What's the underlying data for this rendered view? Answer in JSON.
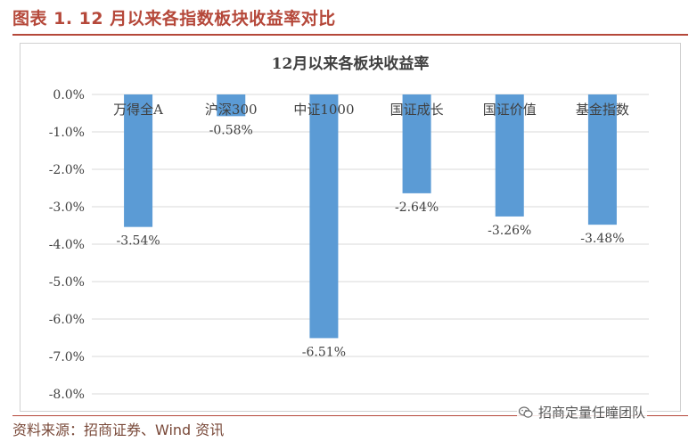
{
  "figure_title": "图表 1. 12 月以来各指数板块收益率对比",
  "source": "资料来源：招商证券、Wind 资讯",
  "watermark": "招商定量任瞳团队",
  "watermark_icon": "wechat-icon",
  "colors": {
    "bar": "#5b9bd5",
    "accent": "#b5483a",
    "grid": "#d9d9d9"
  },
  "chart_data": {
    "type": "bar",
    "title": "12月以来各板块收益率",
    "categories": [
      "万得全A",
      "沪深300",
      "中证1000",
      "国证成长",
      "国证价值",
      "基金指数"
    ],
    "values": [
      -3.54,
      -0.58,
      -6.51,
      -2.64,
      -3.26,
      -3.48
    ],
    "value_labels": [
      "-3.54%",
      "-0.58%",
      "-6.51%",
      "-2.64%",
      "-3.26%",
      "-3.48%"
    ],
    "ylim": [
      -8.0,
      0.0
    ],
    "yticks": [
      0.0,
      -1.0,
      -2.0,
      -3.0,
      -4.0,
      -5.0,
      -6.0,
      -7.0,
      -8.0
    ],
    "ytick_labels": [
      "0.0%",
      "-1.0%",
      "-2.0%",
      "-3.0%",
      "-4.0%",
      "-5.0%",
      "-6.0%",
      "-7.0%",
      "-8.0%"
    ],
    "grid": true,
    "legend": "none"
  }
}
